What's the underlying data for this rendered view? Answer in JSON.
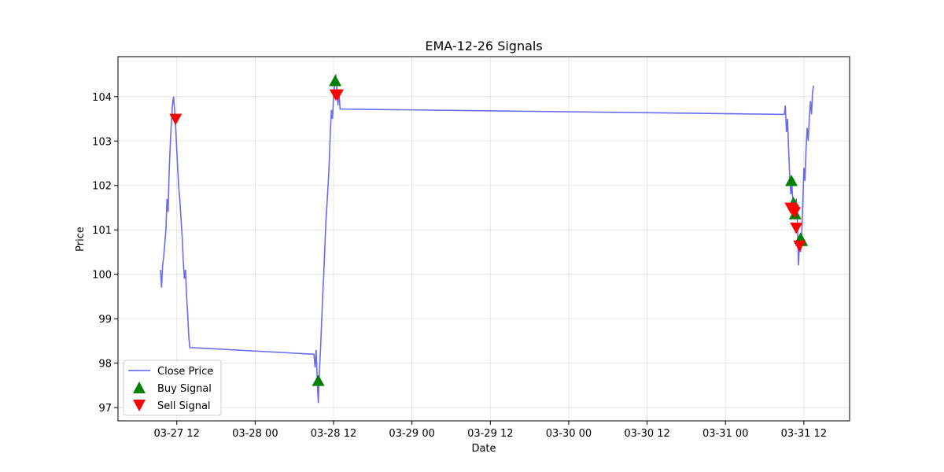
{
  "chart_data": {
    "type": "line",
    "title": "EMA-12-26 Signals",
    "xlabel": "Date",
    "ylabel": "Price",
    "ylim": [
      96.7,
      104.9
    ],
    "xlim": [
      "2024-03-27 03:00",
      "2024-03-31 19:00"
    ],
    "x_ticks": [
      {
        "t": "2024-03-27 12:00",
        "label": "03-27 12"
      },
      {
        "t": "2024-03-28 00:00",
        "label": "03-28 00"
      },
      {
        "t": "2024-03-28 12:00",
        "label": "03-28 12"
      },
      {
        "t": "2024-03-29 00:00",
        "label": "03-29 00"
      },
      {
        "t": "2024-03-29 12:00",
        "label": "03-29 12"
      },
      {
        "t": "2024-03-30 00:00",
        "label": "03-30 00"
      },
      {
        "t": "2024-03-30 12:00",
        "label": "03-30 12"
      },
      {
        "t": "2024-03-31 00:00",
        "label": "03-31 00"
      },
      {
        "t": "2024-03-31 12:00",
        "label": "03-31 12"
      }
    ],
    "y_ticks": [
      97,
      98,
      99,
      100,
      101,
      102,
      103,
      104
    ],
    "grid": true,
    "legend_position": "lower-left",
    "series": [
      {
        "name": "Close Price",
        "kind": "line",
        "color": "#5b5bf0",
        "points": [
          [
            "2024-03-27 09:30",
            100.1
          ],
          [
            "2024-03-27 09:40",
            99.7
          ],
          [
            "2024-03-27 09:50",
            100.2
          ],
          [
            "2024-03-27 10:00",
            100.4
          ],
          [
            "2024-03-27 10:10",
            100.7
          ],
          [
            "2024-03-27 10:20",
            101.0
          ],
          [
            "2024-03-27 10:30",
            101.7
          ],
          [
            "2024-03-27 10:40",
            101.4
          ],
          [
            "2024-03-27 10:50",
            102.3
          ],
          [
            "2024-03-27 11:00",
            102.9
          ],
          [
            "2024-03-27 11:10",
            103.4
          ],
          [
            "2024-03-27 11:20",
            103.8
          ],
          [
            "2024-03-27 11:30",
            104.0
          ],
          [
            "2024-03-27 11:40",
            103.7
          ],
          [
            "2024-03-27 11:50",
            103.3
          ],
          [
            "2024-03-27 12:00",
            102.8
          ],
          [
            "2024-03-27 12:10",
            102.3
          ],
          [
            "2024-03-27 12:20",
            101.9
          ],
          [
            "2024-03-27 12:30",
            101.6
          ],
          [
            "2024-03-27 12:40",
            101.2
          ],
          [
            "2024-03-27 12:50",
            100.8
          ],
          [
            "2024-03-27 13:00",
            100.3
          ],
          [
            "2024-03-27 13:10",
            99.9
          ],
          [
            "2024-03-27 13:20",
            100.1
          ],
          [
            "2024-03-27 13:30",
            99.5
          ],
          [
            "2024-03-27 13:40",
            99.1
          ],
          [
            "2024-03-27 13:50",
            98.6
          ],
          [
            "2024-03-27 14:00",
            98.35
          ],
          [
            "2024-03-28 09:00",
            98.2
          ],
          [
            "2024-03-28 09:10",
            97.9
          ],
          [
            "2024-03-28 09:20",
            98.3
          ],
          [
            "2024-03-28 09:30",
            97.6
          ],
          [
            "2024-03-28 09:40",
            97.1
          ],
          [
            "2024-03-28 09:50",
            97.8
          ],
          [
            "2024-03-28 10:00",
            98.3
          ],
          [
            "2024-03-28 10:10",
            98.9
          ],
          [
            "2024-03-28 10:20",
            99.5
          ],
          [
            "2024-03-28 10:30",
            100.0
          ],
          [
            "2024-03-28 10:40",
            100.6
          ],
          [
            "2024-03-28 10:50",
            101.2
          ],
          [
            "2024-03-28 11:00",
            101.6
          ],
          [
            "2024-03-28 11:10",
            102.0
          ],
          [
            "2024-03-28 11:20",
            102.5
          ],
          [
            "2024-03-28 11:30",
            103.2
          ],
          [
            "2024-03-28 11:40",
            103.7
          ],
          [
            "2024-03-28 11:50",
            103.5
          ],
          [
            "2024-03-28 12:00",
            104.0
          ],
          [
            "2024-03-28 12:10",
            104.3
          ],
          [
            "2024-03-28 12:20",
            104.5
          ],
          [
            "2024-03-28 12:30",
            104.2
          ],
          [
            "2024-03-28 12:40",
            103.8
          ],
          [
            "2024-03-28 12:50",
            104.1
          ],
          [
            "2024-03-28 13:00",
            103.72
          ],
          [
            "2024-03-31 09:00",
            103.6
          ],
          [
            "2024-03-31 09:10",
            103.8
          ],
          [
            "2024-03-31 09:20",
            103.2
          ],
          [
            "2024-03-31 09:30",
            103.5
          ],
          [
            "2024-03-31 09:40",
            102.8
          ],
          [
            "2024-03-31 09:50",
            102.2
          ],
          [
            "2024-03-31 10:00",
            101.8
          ],
          [
            "2024-03-31 10:10",
            102.0
          ],
          [
            "2024-03-31 10:20",
            101.6
          ],
          [
            "2024-03-31 10:30",
            101.3
          ],
          [
            "2024-03-31 10:40",
            101.5
          ],
          [
            "2024-03-31 10:50",
            101.7
          ],
          [
            "2024-03-31 11:00",
            101.2
          ],
          [
            "2024-03-31 11:10",
            100.2
          ],
          [
            "2024-03-31 11:20",
            100.7
          ],
          [
            "2024-03-31 11:30",
            100.5
          ],
          [
            "2024-03-31 11:40",
            100.9
          ],
          [
            "2024-03-31 11:50",
            101.6
          ],
          [
            "2024-03-31 12:00",
            102.4
          ],
          [
            "2024-03-31 12:10",
            102.1
          ],
          [
            "2024-03-31 12:20",
            102.8
          ],
          [
            "2024-03-31 12:30",
            103.3
          ],
          [
            "2024-03-31 12:40",
            103.0
          ],
          [
            "2024-03-31 12:50",
            103.5
          ],
          [
            "2024-03-31 13:00",
            103.9
          ],
          [
            "2024-03-31 13:10",
            103.6
          ],
          [
            "2024-03-31 13:20",
            104.1
          ],
          [
            "2024-03-31 13:30",
            104.25
          ]
        ]
      },
      {
        "name": "Buy Signal",
        "kind": "marker-up",
        "color": "#008000",
        "points": [
          [
            "2024-03-28 09:40",
            97.6
          ],
          [
            "2024-03-28 12:15",
            104.35
          ],
          [
            "2024-03-31 10:05",
            102.1
          ],
          [
            "2024-03-31 10:25",
            101.6
          ],
          [
            "2024-03-31 10:40",
            101.35
          ],
          [
            "2024-03-31 11:30",
            100.8
          ],
          [
            "2024-03-31 11:40",
            100.75
          ]
        ]
      },
      {
        "name": "Sell Signal",
        "kind": "marker-down",
        "color": "#ff0000",
        "points": [
          [
            "2024-03-27 11:50",
            103.5
          ],
          [
            "2024-03-28 12:20",
            104.05
          ],
          [
            "2024-03-28 12:35",
            104.05
          ],
          [
            "2024-03-31 10:00",
            101.5
          ],
          [
            "2024-03-31 10:20",
            101.45
          ],
          [
            "2024-03-31 10:35",
            101.4
          ],
          [
            "2024-03-31 10:50",
            101.05
          ],
          [
            "2024-03-31 11:20",
            100.65
          ]
        ]
      }
    ]
  }
}
